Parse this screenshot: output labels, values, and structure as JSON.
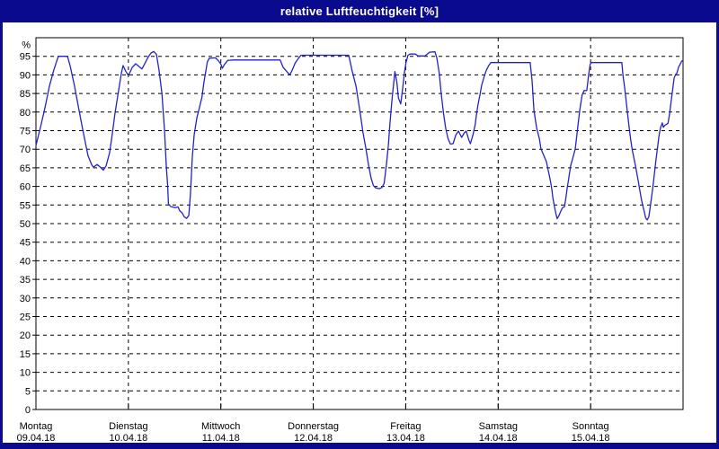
{
  "window": {
    "title": "relative Luftfeuchtigkeit [%]"
  },
  "colors": {
    "frame_navy": "#0a0a8f",
    "title_text": "#ffffff",
    "plot_background": "#ffffff",
    "grid_black": "#000000",
    "axis_label": "#000000",
    "line_blue": "#2222cc"
  },
  "chart_data": {
    "type": "line",
    "title": "relative Luftfeuchtigkeit [%]",
    "ylabel": "%",
    "y_unit_label": "%",
    "ylim": [
      0,
      100
    ],
    "yticks": [
      0,
      5,
      10,
      15,
      20,
      25,
      30,
      35,
      40,
      45,
      50,
      55,
      60,
      65,
      70,
      75,
      80,
      85,
      90,
      95
    ],
    "grid": "dashed",
    "legend_position": "none",
    "x_unit": "hours since Monday 00:00",
    "xlim": [
      0,
      168
    ],
    "x_ticks": [
      {
        "hour": 0,
        "day": "Montag",
        "date": "09.04.18"
      },
      {
        "hour": 24,
        "day": "Dienstag",
        "date": "10.04.18"
      },
      {
        "hour": 48,
        "day": "Mittwoch",
        "date": "11.04.18"
      },
      {
        "hour": 72,
        "day": "Donnerstag",
        "date": "12.04.18"
      },
      {
        "hour": 96,
        "day": "Freitag",
        "date": "13.04.18"
      },
      {
        "hour": 120,
        "day": "Samstag",
        "date": "14.04.18"
      },
      {
        "hour": 144,
        "day": "Sonntag",
        "date": "15.04.18"
      }
    ],
    "x_gridlines_hours": [
      24,
      48,
      72,
      96,
      120,
      144
    ],
    "series": [
      {
        "name": "relative Luftfeuchtigkeit",
        "color": "#2222cc",
        "points": [
          [
            0,
            71
          ],
          [
            1.2,
            76
          ],
          [
            2.3,
            81
          ],
          [
            3.5,
            87
          ],
          [
            4.7,
            91.5
          ],
          [
            5.8,
            95
          ],
          [
            8.2,
            95
          ],
          [
            8.9,
            92.4
          ],
          [
            10,
            87
          ],
          [
            11.2,
            80.4
          ],
          [
            12.4,
            74
          ],
          [
            13.5,
            68.3
          ],
          [
            14.5,
            65.8
          ],
          [
            14.9,
            65.2
          ],
          [
            15.9,
            65.9
          ],
          [
            16.8,
            65.1
          ],
          [
            17.5,
            64.4
          ],
          [
            18.2,
            65.5
          ],
          [
            19.1,
            69
          ],
          [
            19.8,
            74
          ],
          [
            20.5,
            79.6
          ],
          [
            21.5,
            86
          ],
          [
            22.2,
            90.5
          ],
          [
            22.6,
            92.5
          ],
          [
            23.3,
            91
          ],
          [
            24,
            89.8
          ],
          [
            25,
            92
          ],
          [
            25.9,
            93
          ],
          [
            26.8,
            92.2
          ],
          [
            27.5,
            91.6
          ],
          [
            28.5,
            93.5
          ],
          [
            29.2,
            94.9
          ],
          [
            29.9,
            95.9
          ],
          [
            30.6,
            96.3
          ],
          [
            31.3,
            95.5
          ],
          [
            32,
            91
          ],
          [
            32.7,
            85.2
          ],
          [
            33.4,
            75
          ],
          [
            33.8,
            66
          ],
          [
            34.2,
            60
          ],
          [
            34.4,
            55.3
          ],
          [
            35,
            54.6
          ],
          [
            36.2,
            54.3
          ],
          [
            36.9,
            54.5
          ],
          [
            37.3,
            53.5
          ],
          [
            38,
            52.8
          ],
          [
            38.5,
            51.8
          ],
          [
            39.1,
            51.4
          ],
          [
            39.7,
            52.2
          ],
          [
            40.1,
            58
          ],
          [
            40.6,
            68
          ],
          [
            41.1,
            74
          ],
          [
            41.8,
            78.5
          ],
          [
            42.4,
            81
          ],
          [
            43.1,
            84
          ],
          [
            43.6,
            88
          ],
          [
            44.1,
            91
          ],
          [
            44.5,
            93.5
          ],
          [
            45,
            94.5
          ],
          [
            46.6,
            94.6
          ],
          [
            47.3,
            93.9
          ],
          [
            48,
            92.9
          ],
          [
            48.4,
            91.8
          ],
          [
            49,
            92.9
          ],
          [
            49.8,
            93.9
          ],
          [
            51,
            94
          ],
          [
            63.4,
            94
          ],
          [
            64.2,
            92
          ],
          [
            65.9,
            90
          ],
          [
            66.5,
            91.2
          ],
          [
            67.3,
            93.2
          ],
          [
            68.1,
            94.4
          ],
          [
            68.8,
            95.3
          ],
          [
            81.2,
            95.3
          ],
          [
            82.1,
            91
          ],
          [
            83.1,
            87
          ],
          [
            84,
            81
          ],
          [
            84.9,
            74.5
          ],
          [
            85.6,
            70.5
          ],
          [
            86.3,
            66
          ],
          [
            87,
            62.2
          ],
          [
            87.6,
            60.3
          ],
          [
            88.2,
            59.6
          ],
          [
            89.1,
            59.4
          ],
          [
            89.8,
            59.7
          ],
          [
            90.4,
            60.8
          ],
          [
            91,
            66
          ],
          [
            91.5,
            71
          ],
          [
            91.9,
            77
          ],
          [
            92.5,
            84
          ],
          [
            93,
            89
          ],
          [
            93.2,
            90.9
          ],
          [
            93.7,
            88
          ],
          [
            94.1,
            83.8
          ],
          [
            94.7,
            82.2
          ],
          [
            95.2,
            86.3
          ],
          [
            95.7,
            90.8
          ],
          [
            96.1,
            93.5
          ],
          [
            96.6,
            95.3
          ],
          [
            97.1,
            95.6
          ],
          [
            98.5,
            95.6
          ],
          [
            99.2,
            95.1
          ],
          [
            101,
            95.1
          ],
          [
            102.2,
            96.1
          ],
          [
            103.6,
            96.2
          ],
          [
            104.1,
            94.5
          ],
          [
            104.7,
            90.5
          ],
          [
            105.2,
            85
          ],
          [
            105.8,
            79.8
          ],
          [
            106.4,
            75.5
          ],
          [
            107,
            72.8
          ],
          [
            107.6,
            71.4
          ],
          [
            108.3,
            71.5
          ],
          [
            109,
            73.8
          ],
          [
            109.7,
            74.9
          ],
          [
            110.5,
            73.2
          ],
          [
            111.2,
            74.4
          ],
          [
            111.7,
            74.9
          ],
          [
            112.4,
            72.5
          ],
          [
            112.8,
            71.5
          ],
          [
            113.5,
            74
          ],
          [
            114,
            76.5
          ],
          [
            114.3,
            78.9
          ],
          [
            114.8,
            82.2
          ],
          [
            115.3,
            84.7
          ],
          [
            115.7,
            87.2
          ],
          [
            116.3,
            89.3
          ],
          [
            116.9,
            91.2
          ],
          [
            117.6,
            92.6
          ],
          [
            118.1,
            93.3
          ],
          [
            128.3,
            93.3
          ],
          [
            128.8,
            88.5
          ],
          [
            129.3,
            80.5
          ],
          [
            130,
            75.7
          ],
          [
            130.7,
            72.9
          ],
          [
            131.1,
            70.1
          ],
          [
            131.8,
            68.4
          ],
          [
            132.5,
            66.7
          ],
          [
            133,
            64.3
          ],
          [
            133.5,
            61.9
          ],
          [
            133.9,
            59.4
          ],
          [
            134.2,
            57
          ],
          [
            134.6,
            54.6
          ],
          [
            135,
            52.6
          ],
          [
            135.3,
            51.3
          ],
          [
            135.8,
            52.2
          ],
          [
            136.3,
            53.4
          ],
          [
            136.7,
            54.3
          ],
          [
            137.2,
            54.5
          ],
          [
            137.6,
            57
          ],
          [
            137.9,
            59.4
          ],
          [
            138.4,
            62.6
          ],
          [
            138.8,
            65.5
          ],
          [
            140,
            70
          ],
          [
            141.2,
            80.6
          ],
          [
            141.8,
            84.6
          ],
          [
            142.3,
            85.8
          ],
          [
            143,
            85.8
          ],
          [
            143.5,
            90.1
          ],
          [
            143.9,
            92.9
          ],
          [
            144.2,
            93.3
          ],
          [
            152.1,
            93.3
          ],
          [
            152.4,
            90
          ],
          [
            152.8,
            86.8
          ],
          [
            153.2,
            83.2
          ],
          [
            153.6,
            79.5
          ],
          [
            154,
            75.9
          ],
          [
            154.4,
            72.7
          ],
          [
            154.8,
            69.9
          ],
          [
            155.2,
            67.9
          ],
          [
            155.6,
            65.8
          ],
          [
            155.9,
            64.2
          ],
          [
            156.3,
            61.8
          ],
          [
            156.7,
            59.4
          ],
          [
            157.1,
            57
          ],
          [
            157.5,
            55
          ],
          [
            157.9,
            53.4
          ],
          [
            158.3,
            51.5
          ],
          [
            158.7,
            51
          ],
          [
            159.1,
            51.8
          ],
          [
            159.4,
            53.8
          ],
          [
            159.8,
            57
          ],
          [
            160.2,
            60.2
          ],
          [
            160.6,
            63.8
          ],
          [
            161,
            67.4
          ],
          [
            161.4,
            70.6
          ],
          [
            161.8,
            73.9
          ],
          [
            162.2,
            75.9
          ],
          [
            162.6,
            77.1
          ],
          [
            162.9,
            75.9
          ],
          [
            163.3,
            76.5
          ],
          [
            163.7,
            76.7
          ],
          [
            164.1,
            77
          ],
          [
            164.5,
            79.5
          ],
          [
            164.9,
            82.8
          ],
          [
            165.3,
            86
          ],
          [
            165.7,
            89.2
          ],
          [
            166.1,
            90.2
          ],
          [
            166.4,
            90.4
          ],
          [
            166.8,
            92
          ],
          [
            167.2,
            92.8
          ],
          [
            167.6,
            93.6
          ],
          [
            168,
            94
          ]
        ]
      }
    ]
  }
}
